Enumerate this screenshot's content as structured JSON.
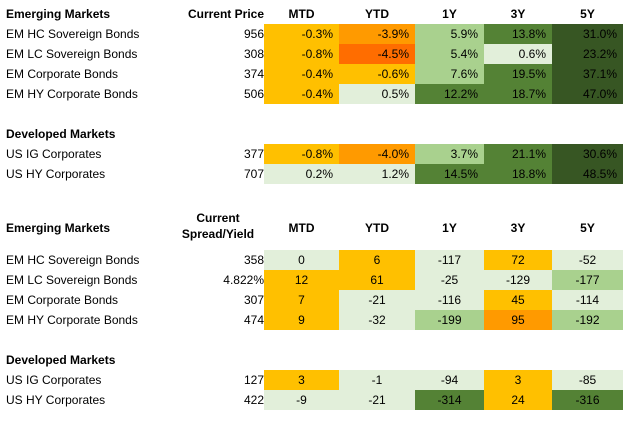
{
  "table1": {
    "header": [
      "Emerging Markets",
      "Current Price",
      "MTD",
      "YTD",
      "1Y",
      "3Y",
      "5Y"
    ],
    "rows": [
      {
        "name": "EM HC Sovereign Bonds",
        "price": "956",
        "cells": [
          "-0.3%",
          "-3.9%",
          "5.9%",
          "13.8%",
          "31.0%"
        ],
        "colors": [
          "#ffc000",
          "#ff9a00",
          "#a9d18e",
          "#548235",
          "#375623"
        ]
      },
      {
        "name": "EM LC Sovereign Bonds",
        "price": "308",
        "cells": [
          "-0.8%",
          "-4.5%",
          "5.4%",
          "0.6%",
          "23.2%"
        ],
        "colors": [
          "#ffc000",
          "#ff6d00",
          "#a9d18e",
          "#e2efda",
          "#375623"
        ]
      },
      {
        "name": "EM Corporate Bonds",
        "price": "374",
        "cells": [
          "-0.4%",
          "-0.6%",
          "7.6%",
          "19.5%",
          "37.1%"
        ],
        "colors": [
          "#ffc000",
          "#ffc000",
          "#a9d18e",
          "#548235",
          "#375623"
        ]
      },
      {
        "name": "EM HY Corporate Bonds",
        "price": "506",
        "cells": [
          "-0.4%",
          "0.5%",
          "12.2%",
          "18.7%",
          "47.0%"
        ],
        "colors": [
          "#ffc000",
          "#e2efda",
          "#548235",
          "#548235",
          "#375623"
        ]
      }
    ],
    "dev_header": "Developed Markets",
    "dev_rows": [
      {
        "name": "US IG Corporates",
        "price": "377",
        "cells": [
          "-0.8%",
          "-4.0%",
          "3.7%",
          "21.1%",
          "30.6%"
        ],
        "colors": [
          "#ffc000",
          "#ff9a00",
          "#a9d18e",
          "#548235",
          "#375623"
        ]
      },
      {
        "name": "US HY Corporates",
        "price": "707",
        "cells": [
          "0.2%",
          "1.2%",
          "14.5%",
          "18.8%",
          "48.5%"
        ],
        "colors": [
          "#e2efda",
          "#e2efda",
          "#548235",
          "#548235",
          "#375623"
        ]
      }
    ]
  },
  "table2": {
    "header": [
      "Emerging Markets",
      "Current",
      "Spread/Yield",
      "MTD",
      "YTD",
      "1Y",
      "3Y",
      "5Y"
    ],
    "rows": [
      {
        "name": "EM HC Sovereign Bonds",
        "price": "358",
        "cells": [
          "0",
          "6",
          "-117",
          "72",
          "-52"
        ],
        "colors": [
          "#e2efda",
          "#ffc000",
          "#e2efda",
          "#ffc000",
          "#e2efda"
        ]
      },
      {
        "name": "EM LC Sovereign Bonds",
        "price": "4.822%",
        "cells": [
          "12",
          "61",
          "-25",
          "-129",
          "-177"
        ],
        "colors": [
          "#ffc000",
          "#ffc000",
          "#e2efda",
          "#e2efda",
          "#a9d18e"
        ]
      },
      {
        "name": "EM Corporate Bonds",
        "price": "307",
        "cells": [
          "7",
          "-21",
          "-116",
          "45",
          "-114"
        ],
        "colors": [
          "#ffc000",
          "#e2efda",
          "#e2efda",
          "#ffc000",
          "#e2efda"
        ]
      },
      {
        "name": "EM HY Corporate Bonds",
        "price": "474",
        "cells": [
          "9",
          "-32",
          "-199",
          "95",
          "-192"
        ],
        "colors": [
          "#ffc000",
          "#e2efda",
          "#a9d18e",
          "#ff9a00",
          "#a9d18e"
        ]
      }
    ],
    "dev_header": "Developed Markets",
    "dev_rows": [
      {
        "name": "US IG Corporates",
        "price": "127",
        "cells": [
          "3",
          "-1",
          "-94",
          "3",
          "-85"
        ],
        "colors": [
          "#ffc000",
          "#e2efda",
          "#e2efda",
          "#ffc000",
          "#e2efda"
        ]
      },
      {
        "name": "US HY Corporates",
        "price": "422",
        "cells": [
          "-9",
          "-21",
          "-314",
          "24",
          "-316"
        ],
        "colors": [
          "#e2efda",
          "#e2efda",
          "#548235",
          "#ffc000",
          "#548235"
        ]
      }
    ]
  }
}
